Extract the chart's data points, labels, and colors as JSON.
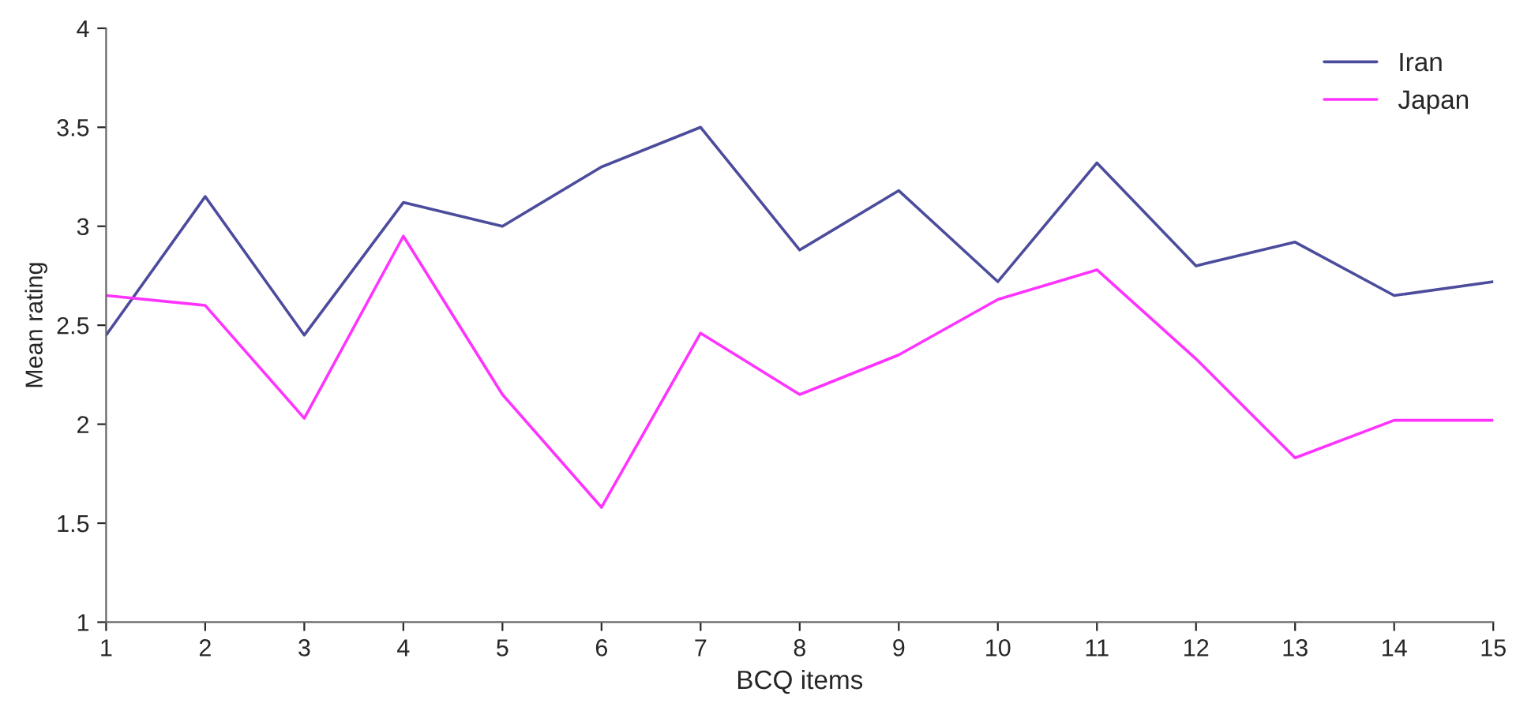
{
  "chart_data": {
    "type": "line",
    "xlabel": "BCQ items",
    "ylabel": "Mean rating",
    "x": [
      1,
      2,
      3,
      4,
      5,
      6,
      7,
      8,
      9,
      10,
      11,
      12,
      13,
      14,
      15
    ],
    "xlim": [
      1,
      15
    ],
    "xticks": [
      1,
      2,
      3,
      4,
      5,
      6,
      7,
      8,
      9,
      10,
      11,
      12,
      13,
      14,
      15
    ],
    "ylim": [
      1,
      4
    ],
    "yticks": [
      1,
      1.5,
      2,
      2.5,
      3,
      3.5,
      4
    ],
    "grid": false,
    "legend": "top right",
    "series": [
      {
        "name": "Iran",
        "color": "#4c4c9c",
        "values": [
          2.45,
          3.15,
          2.45,
          3.12,
          3.0,
          3.3,
          3.5,
          2.88,
          3.18,
          2.72,
          3.32,
          2.8,
          2.92,
          2.65,
          2.72
        ]
      },
      {
        "name": "Japan",
        "color": "#ff33ff",
        "values": [
          2.65,
          2.6,
          2.03,
          2.95,
          2.15,
          1.58,
          2.46,
          2.15,
          2.35,
          2.63,
          2.78,
          2.33,
          1.83,
          2.02,
          2.02
        ]
      }
    ]
  }
}
